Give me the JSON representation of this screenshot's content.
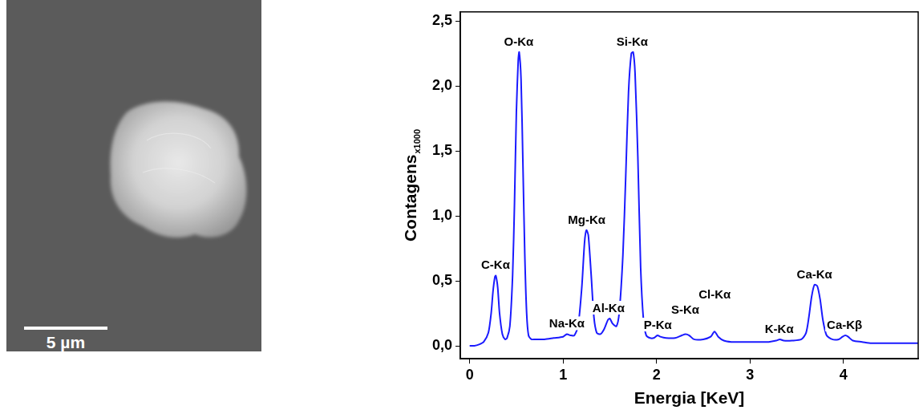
{
  "image": {
    "scale_bar": "5 µm"
  },
  "chart_data": {
    "type": "line",
    "x_label": "Energia [KeV]",
    "y_label": "Contagens",
    "y_label_subscript": "x1000",
    "color": "#1a1aff",
    "grid": false,
    "xlim": [
      -0.1,
      4.8
    ],
    "xticks": [
      0,
      1,
      2,
      3,
      4
    ],
    "ylim": [
      -0.1,
      2.57
    ],
    "yticks": [
      {
        "value": 0,
        "label": "0,0"
      },
      {
        "value": 0.5,
        "label": "0,5"
      },
      {
        "value": 1,
        "label": "1,0"
      },
      {
        "value": 1.5,
        "label": "1,5"
      },
      {
        "value": 2,
        "label": "2,0"
      },
      {
        "value": 2.5,
        "label": "2,5"
      }
    ],
    "x": [
      0,
      0.05,
      0.1,
      0.15,
      0.2,
      0.23,
      0.25,
      0.27,
      0.28,
      0.3,
      0.32,
      0.35,
      0.38,
      0.4,
      0.43,
      0.46,
      0.48,
      0.5,
      0.52,
      0.53,
      0.55,
      0.57,
      0.59,
      0.61,
      0.63,
      0.66,
      0.7,
      0.8,
      0.9,
      1.0,
      1.04,
      1.08,
      1.12,
      1.16,
      1.2,
      1.23,
      1.25,
      1.27,
      1.3,
      1.33,
      1.36,
      1.4,
      1.44,
      1.48,
      1.5,
      1.53,
      1.57,
      1.6,
      1.64,
      1.67,
      1.7,
      1.73,
      1.75,
      1.77,
      1.8,
      1.83,
      1.86,
      1.89,
      1.93,
      1.97,
      2.01,
      2.04,
      2.1,
      2.2,
      2.27,
      2.31,
      2.35,
      2.4,
      2.5,
      2.58,
      2.62,
      2.66,
      2.72,
      2.8,
      2.9,
      3.0,
      3.1,
      3.2,
      3.28,
      3.32,
      3.36,
      3.45,
      3.55,
      3.6,
      3.63,
      3.66,
      3.69,
      3.72,
      3.75,
      3.78,
      3.82,
      3.88,
      3.95,
      3.99,
      4.02,
      4.05,
      4.1,
      4.2,
      4.3,
      4.4,
      4.5,
      4.6,
      4.7,
      4.8
    ],
    "values": [
      0,
      0,
      0.01,
      0.03,
      0.1,
      0.25,
      0.42,
      0.53,
      0.54,
      0.45,
      0.25,
      0.09,
      0.05,
      0.06,
      0.15,
      0.55,
      1.1,
      1.8,
      2.2,
      2.26,
      2.05,
      1.4,
      0.7,
      0.25,
      0.08,
      0.05,
      0.05,
      0.05,
      0.06,
      0.07,
      0.09,
      0.08,
      0.08,
      0.15,
      0.45,
      0.8,
      0.89,
      0.85,
      0.55,
      0.22,
      0.1,
      0.09,
      0.13,
      0.2,
      0.21,
      0.17,
      0.15,
      0.25,
      0.7,
      1.3,
      1.95,
      2.25,
      2.26,
      2.1,
      1.45,
      0.6,
      0.2,
      0.08,
      0.06,
      0.06,
      0.08,
      0.07,
      0.06,
      0.06,
      0.08,
      0.09,
      0.08,
      0.05,
      0.05,
      0.07,
      0.11,
      0.07,
      0.04,
      0.03,
      0.03,
      0.03,
      0.03,
      0.03,
      0.04,
      0.05,
      0.04,
      0.04,
      0.05,
      0.1,
      0.22,
      0.38,
      0.47,
      0.46,
      0.36,
      0.2,
      0.08,
      0.05,
      0.05,
      0.07,
      0.08,
      0.07,
      0.04,
      0.03,
      0.02,
      0.02,
      0.02,
      0.02,
      0.02,
      0.02
    ],
    "peaks": [
      {
        "label": "C-Kα",
        "x": 0.277
      },
      {
        "label": "O-Kα",
        "x": 0.525
      },
      {
        "label": "Na-Kα",
        "x": 1.041
      },
      {
        "label": "Mg-Kα",
        "x": 1.253
      },
      {
        "label": "Al-Kα",
        "x": 1.486
      },
      {
        "label": "Si-Kα",
        "x": 1.74
      },
      {
        "label": "P-Kα",
        "x": 2.013
      },
      {
        "label": "S-Kα",
        "x": 2.307
      },
      {
        "label": "Cl-Kα",
        "x": 2.622
      },
      {
        "label": "K-Kα",
        "x": 3.313
      },
      {
        "label": "Ca-Kα",
        "x": 3.69
      },
      {
        "label": "Ca-Kβ",
        "x": 4.012
      }
    ]
  }
}
